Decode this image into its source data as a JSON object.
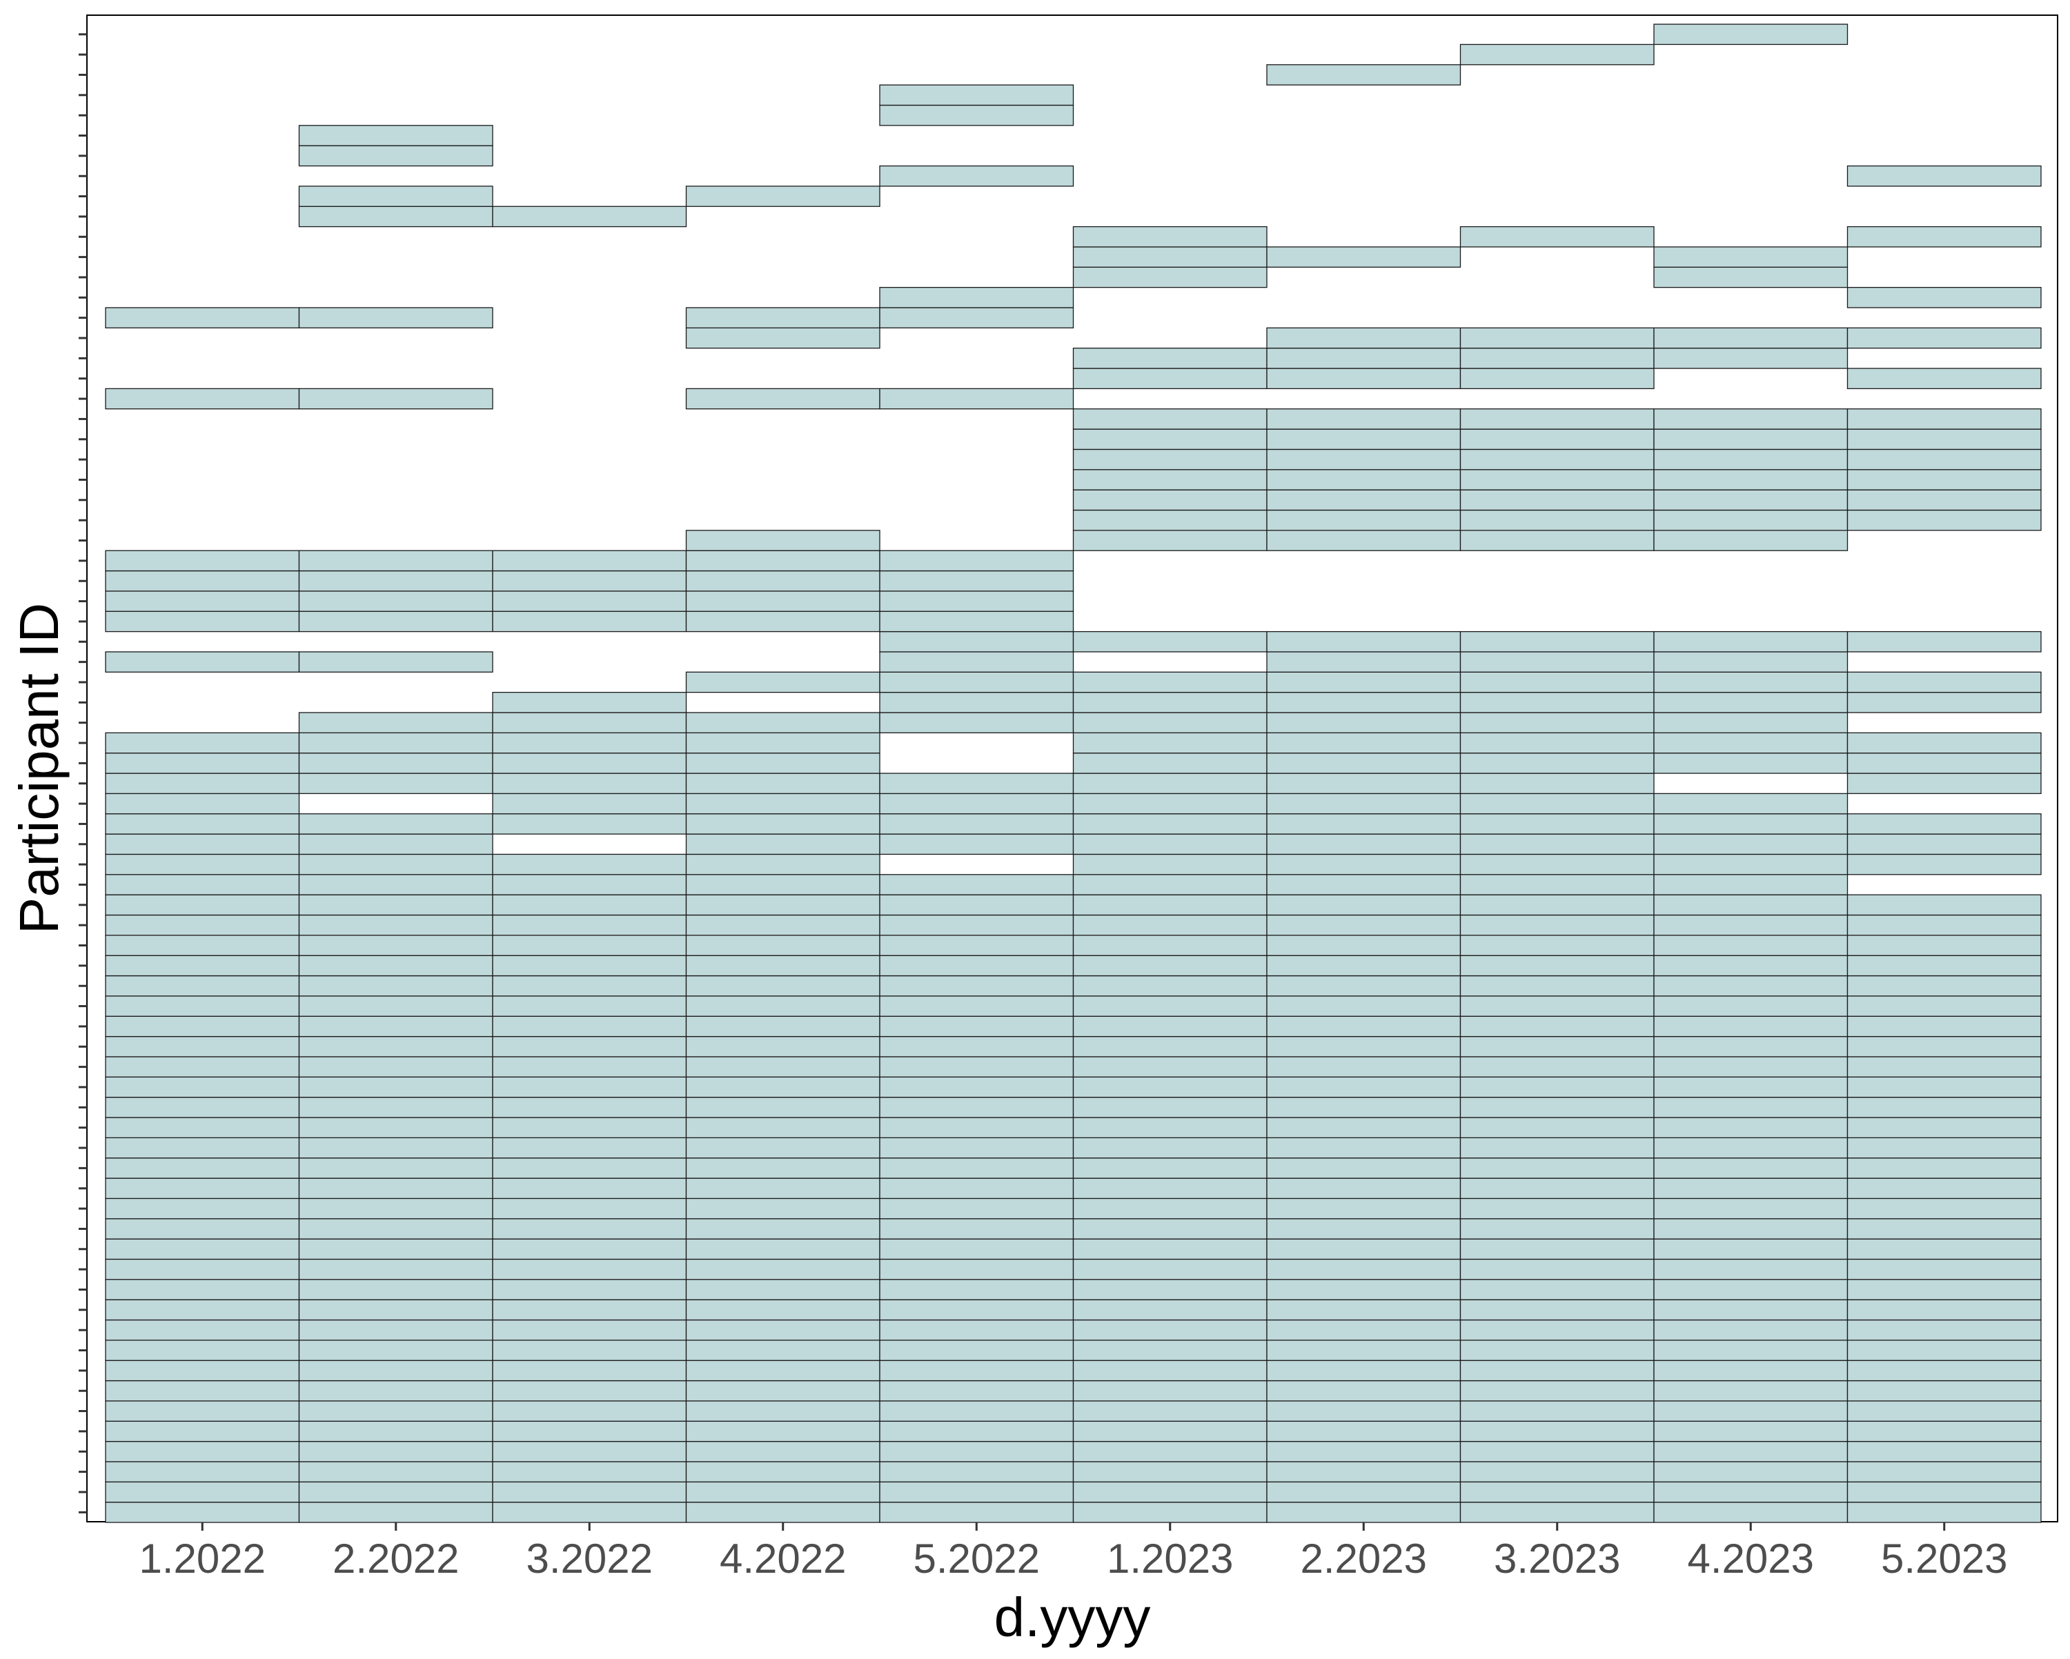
{
  "chart_data": {
    "type": "heatmap",
    "title": "",
    "xlabel": "d.yyyy",
    "ylabel": "Participant ID",
    "x_categories": [
      "1.2022",
      "2.2022",
      "3.2022",
      "4.2022",
      "5.2022",
      "1.2023",
      "2.2023",
      "3.2023",
      "4.2023",
      "5.2023"
    ],
    "y_tick_labels_shown": false,
    "participants_count": 74,
    "fill_color": "#c0d9db",
    "stroke_color": "#1a1a1a",
    "grid": false,
    "note_rows": "row 1 = bottom participant, row 74 = top participant",
    "participation": [
      {
        "period": "1.2022",
        "rows": [
          [
            1,
            39
          ],
          [
            43,
            43
          ],
          [
            45,
            48
          ],
          [
            56,
            56
          ],
          [
            60,
            60
          ]
        ]
      },
      {
        "period": "2.2022",
        "rows": [
          [
            1,
            35
          ],
          [
            37,
            40
          ],
          [
            43,
            43
          ],
          [
            45,
            48
          ],
          [
            56,
            56
          ],
          [
            60,
            60
          ],
          [
            65,
            66
          ],
          [
            68,
            69
          ]
        ]
      },
      {
        "period": "3.2022",
        "rows": [
          [
            1,
            33
          ],
          [
            35,
            41
          ],
          [
            45,
            48
          ],
          [
            65,
            65
          ]
        ]
      },
      {
        "period": "4.2022",
        "rows": [
          [
            1,
            40
          ],
          [
            42,
            42
          ],
          [
            45,
            49
          ],
          [
            56,
            56
          ],
          [
            59,
            60
          ],
          [
            66,
            66
          ]
        ]
      },
      {
        "period": "5.2022",
        "rows": [
          [
            1,
            32
          ],
          [
            34,
            37
          ],
          [
            40,
            48
          ],
          [
            56,
            56
          ],
          [
            60,
            61
          ],
          [
            67,
            67
          ],
          [
            70,
            71
          ]
        ]
      },
      {
        "period": "1.2023",
        "rows": [
          [
            1,
            42
          ],
          [
            44,
            44
          ],
          [
            49,
            55
          ],
          [
            57,
            58
          ],
          [
            62,
            64
          ]
        ]
      },
      {
        "period": "2.2023",
        "rows": [
          [
            1,
            44
          ],
          [
            49,
            55
          ],
          [
            57,
            59
          ],
          [
            63,
            63
          ],
          [
            72,
            72
          ]
        ]
      },
      {
        "period": "3.2023",
        "rows": [
          [
            1,
            44
          ],
          [
            49,
            55
          ],
          [
            57,
            59
          ],
          [
            64,
            64
          ],
          [
            73,
            73
          ]
        ]
      },
      {
        "period": "4.2023",
        "rows": [
          [
            1,
            36
          ],
          [
            38,
            44
          ],
          [
            49,
            55
          ],
          [
            58,
            59
          ],
          [
            62,
            63
          ],
          [
            74,
            74
          ]
        ]
      },
      {
        "period": "5.2023",
        "rows": [
          [
            1,
            31
          ],
          [
            33,
            35
          ],
          [
            37,
            39
          ],
          [
            41,
            42
          ],
          [
            44,
            44
          ],
          [
            50,
            55
          ],
          [
            57,
            57
          ],
          [
            59,
            59
          ],
          [
            61,
            61
          ],
          [
            64,
            64
          ],
          [
            67,
            67
          ]
        ]
      }
    ]
  }
}
